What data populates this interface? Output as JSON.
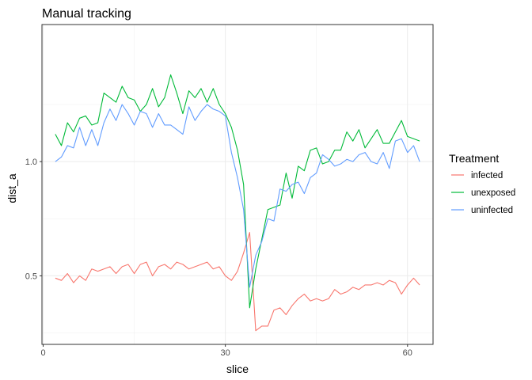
{
  "chart_data": {
    "type": "line",
    "title": "Manual tracking",
    "xlabel": "slice",
    "ylabel": "dist_a",
    "xlim": [
      -0.2,
      64.2
    ],
    "ylim": [
      0.2,
      1.6
    ],
    "x_ticks": [
      0,
      30,
      60
    ],
    "x_tick_labels": [
      "0",
      "30",
      "60"
    ],
    "y_ticks": [
      0.5,
      1.0
    ],
    "y_tick_labels": [
      "0.5",
      "1.0"
    ],
    "grid": true,
    "legend": {
      "title": "Treatment",
      "position": "right"
    },
    "series": [
      {
        "name": "infected",
        "color": "#F8766D",
        "x": [
          2,
          3,
          4,
          5,
          6,
          7,
          8,
          9,
          10,
          11,
          12,
          13,
          14,
          15,
          16,
          17,
          18,
          19,
          20,
          21,
          22,
          23,
          24,
          25,
          26,
          27,
          28,
          29,
          30,
          31,
          32,
          33,
          34,
          35,
          36,
          37,
          38,
          39,
          40,
          41,
          42,
          43,
          44,
          45,
          46,
          47,
          48,
          49,
          50,
          51,
          52,
          53,
          54,
          55,
          56,
          57,
          58,
          59,
          60,
          61,
          62
        ],
        "y": [
          0.49,
          0.48,
          0.51,
          0.47,
          0.5,
          0.48,
          0.53,
          0.52,
          0.53,
          0.54,
          0.51,
          0.54,
          0.55,
          0.51,
          0.55,
          0.56,
          0.5,
          0.54,
          0.55,
          0.53,
          0.56,
          0.55,
          0.53,
          0.54,
          0.55,
          0.56,
          0.53,
          0.54,
          0.5,
          0.48,
          0.52,
          0.6,
          0.69,
          0.26,
          0.28,
          0.28,
          0.35,
          0.36,
          0.33,
          0.37,
          0.4,
          0.42,
          0.39,
          0.4,
          0.39,
          0.4,
          0.44,
          0.42,
          0.43,
          0.45,
          0.44,
          0.46,
          0.46,
          0.47,
          0.46,
          0.48,
          0.47,
          0.42,
          0.46,
          0.49,
          0.46
        ]
      },
      {
        "name": "unexposed",
        "color": "#00BA38",
        "x": [
          2,
          3,
          4,
          5,
          6,
          7,
          8,
          9,
          10,
          11,
          12,
          13,
          14,
          15,
          16,
          17,
          18,
          19,
          20,
          21,
          22,
          23,
          24,
          25,
          26,
          27,
          28,
          29,
          30,
          31,
          32,
          33,
          34,
          35,
          36,
          37,
          38,
          39,
          40,
          41,
          42,
          43,
          44,
          45,
          46,
          47,
          48,
          49,
          50,
          51,
          52,
          53,
          54,
          55,
          56,
          57,
          58,
          59,
          60,
          61,
          62
        ],
        "y": [
          1.12,
          1.07,
          1.17,
          1.13,
          1.19,
          1.2,
          1.16,
          1.17,
          1.3,
          1.28,
          1.26,
          1.33,
          1.28,
          1.27,
          1.22,
          1.25,
          1.32,
          1.24,
          1.28,
          1.38,
          1.3,
          1.21,
          1.31,
          1.28,
          1.32,
          1.26,
          1.32,
          1.25,
          1.21,
          1.15,
          1.05,
          0.9,
          0.36,
          0.53,
          0.66,
          0.79,
          0.8,
          0.81,
          0.95,
          0.84,
          0.98,
          0.96,
          1.05,
          1.06,
          0.99,
          1.0,
          1.05,
          1.05,
          1.13,
          1.09,
          1.14,
          1.06,
          1.1,
          1.14,
          1.08,
          1.08,
          1.13,
          1.18,
          1.11,
          1.1,
          1.09
        ]
      },
      {
        "name": "uninfected",
        "color": "#619CFF",
        "x": [
          2,
          3,
          4,
          5,
          6,
          7,
          8,
          9,
          10,
          11,
          12,
          13,
          14,
          15,
          16,
          17,
          18,
          19,
          20,
          21,
          22,
          23,
          24,
          25,
          26,
          27,
          28,
          29,
          30,
          31,
          32,
          33,
          34,
          35,
          36,
          37,
          38,
          39,
          40,
          41,
          42,
          43,
          44,
          45,
          46,
          47,
          48,
          49,
          50,
          51,
          52,
          53,
          54,
          55,
          56,
          57,
          58,
          59,
          60,
          61,
          62
        ],
        "y": [
          1.0,
          1.02,
          1.07,
          1.06,
          1.15,
          1.07,
          1.14,
          1.07,
          1.17,
          1.23,
          1.18,
          1.25,
          1.21,
          1.16,
          1.22,
          1.21,
          1.15,
          1.21,
          1.16,
          1.16,
          1.14,
          1.12,
          1.24,
          1.18,
          1.22,
          1.25,
          1.23,
          1.22,
          1.2,
          1.04,
          0.93,
          0.79,
          0.45,
          0.59,
          0.65,
          0.75,
          0.74,
          0.88,
          0.87,
          0.9,
          0.91,
          0.86,
          0.93,
          0.95,
          1.03,
          1.01,
          0.98,
          0.99,
          1.01,
          1.0,
          1.03,
          1.04,
          1.0,
          0.99,
          1.04,
          0.97,
          1.09,
          1.1,
          1.04,
          1.07,
          1.0
        ]
      }
    ]
  }
}
